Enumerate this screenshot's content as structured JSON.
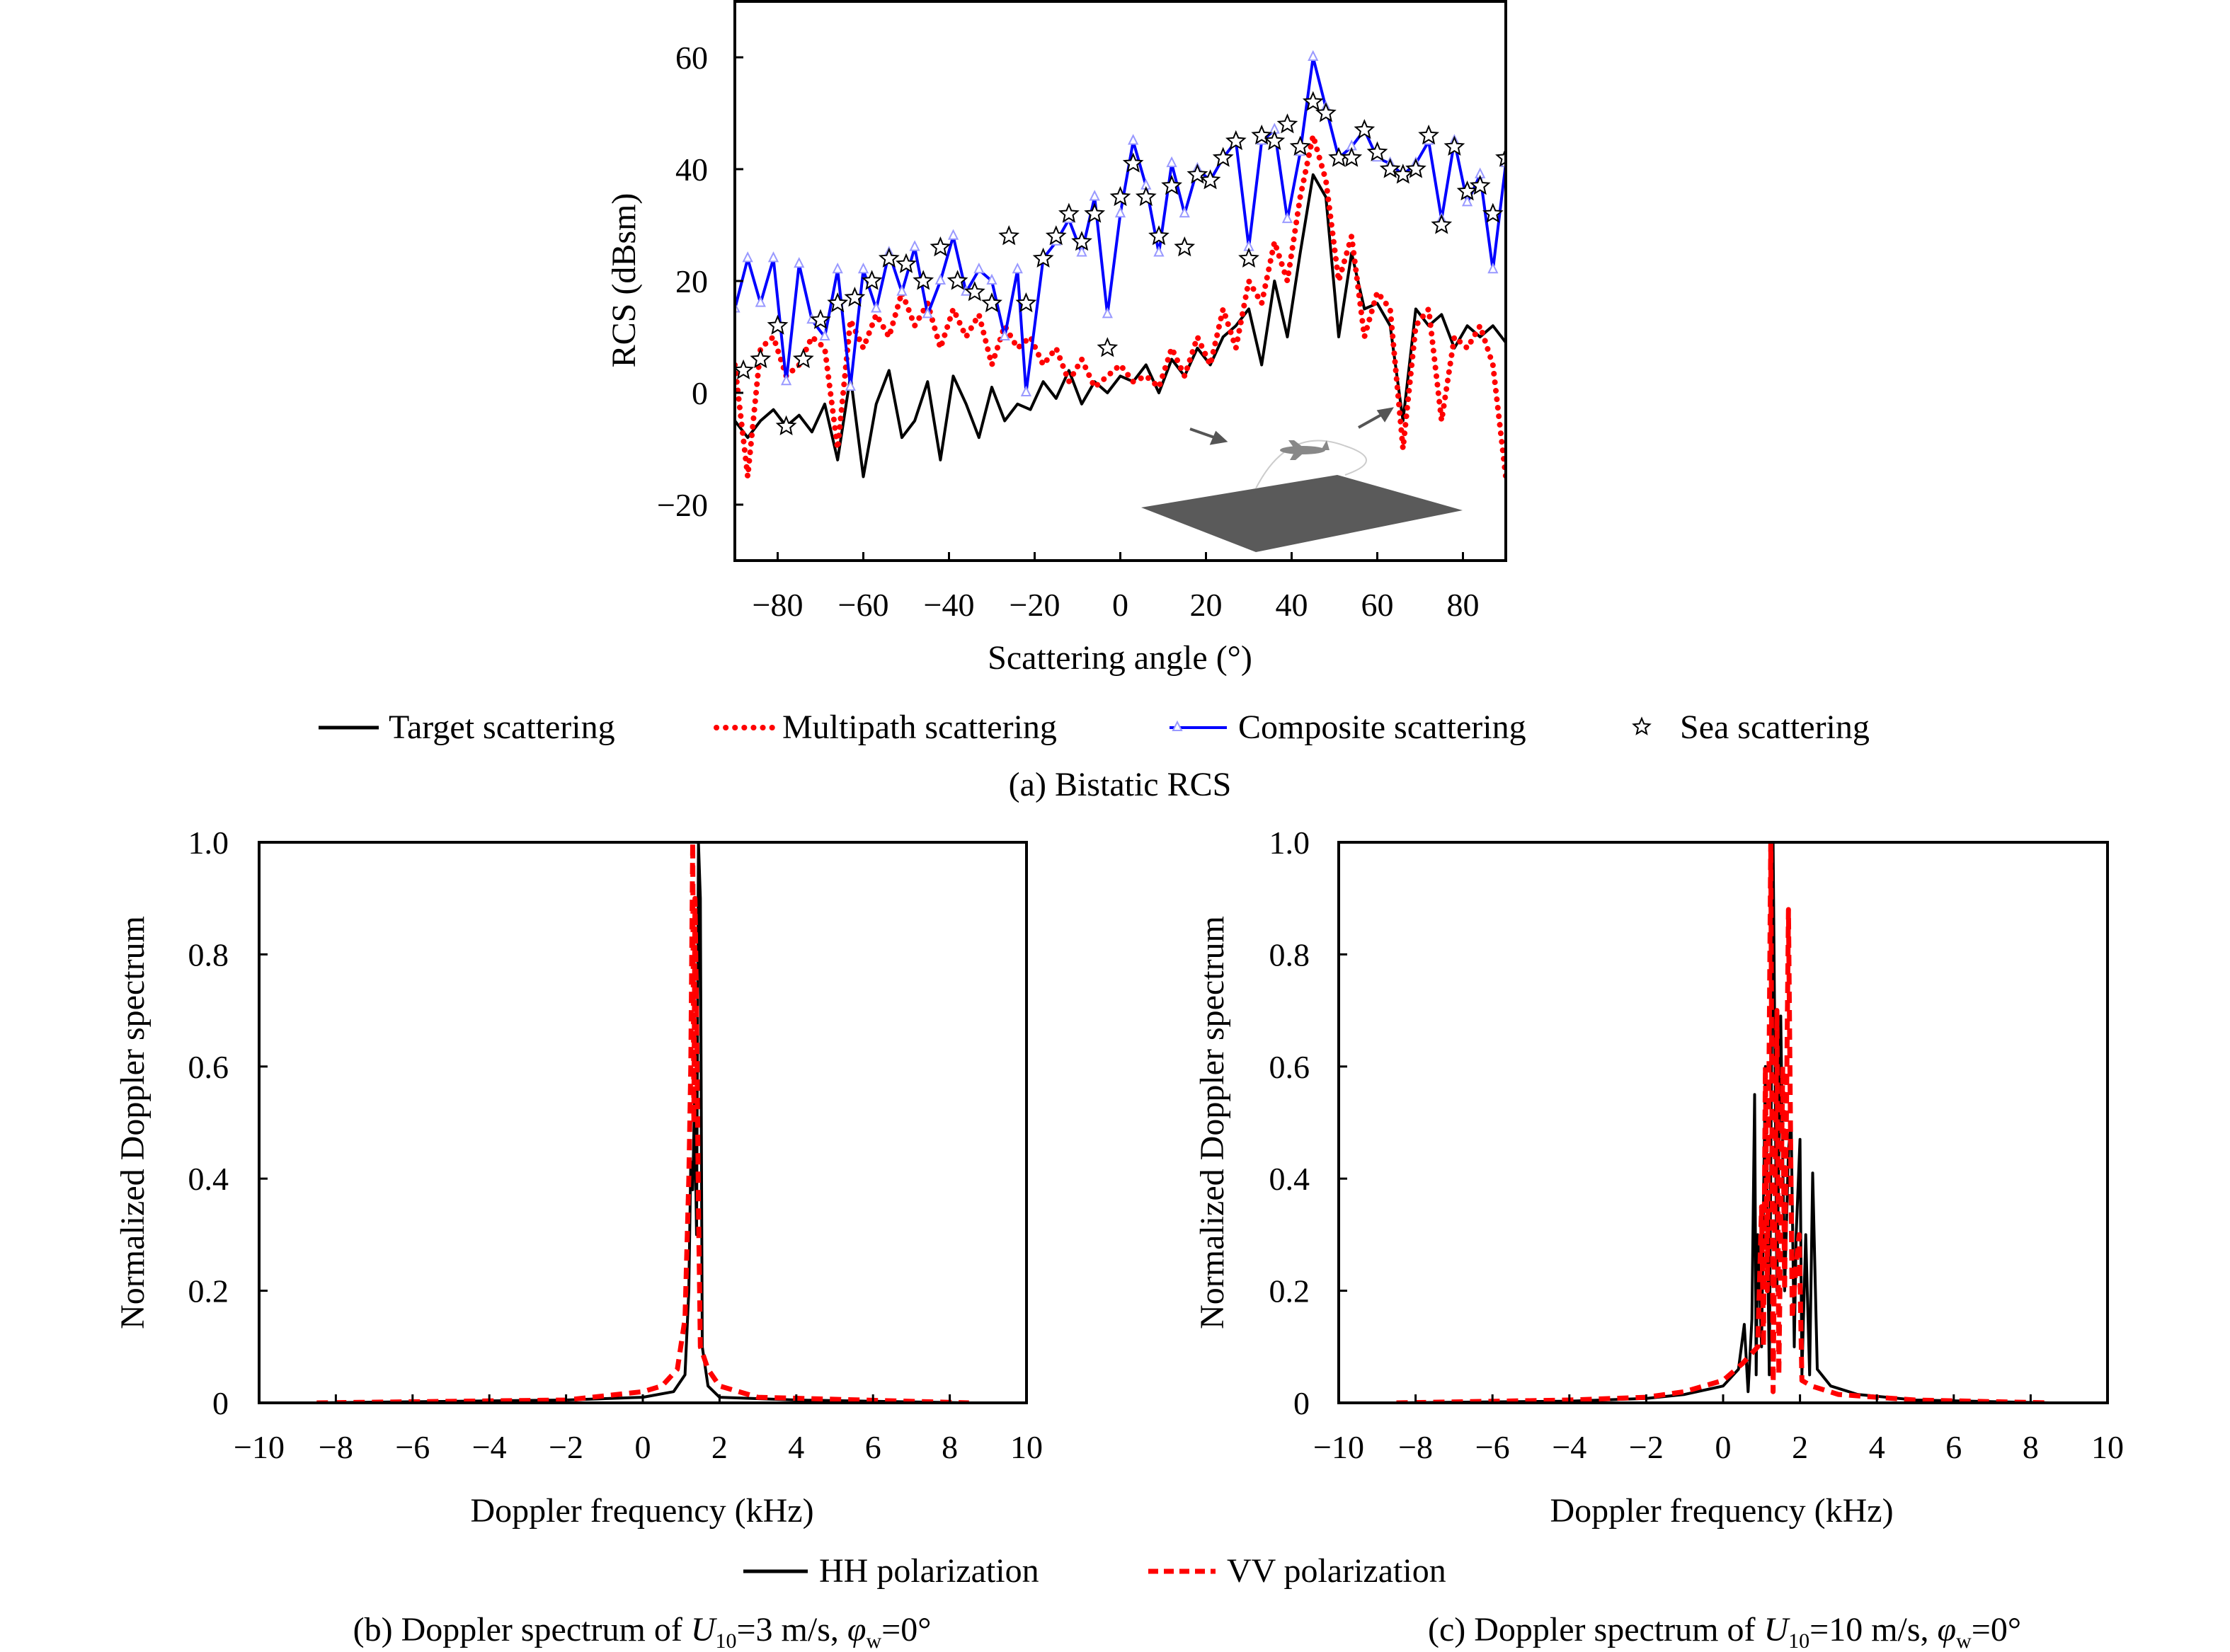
{
  "colors": {
    "target": "#000000",
    "multipath": "#ff0000",
    "composite": "#0000ff",
    "composite_marker": "#9999ff",
    "sea": "#000000",
    "hh": "#000000",
    "vv": "#ff0000",
    "sea_surface": "#555555"
  },
  "chart_data": [
    {
      "id": "a",
      "type": "line",
      "xlabel": "Scattering angle (°)",
      "ylabel": "RCS (dBsm)",
      "xlim": [
        -90,
        90
      ],
      "ylim": [
        -30,
        70
      ],
      "xticks": [
        -80,
        -60,
        -40,
        -20,
        0,
        20,
        40,
        60,
        80
      ],
      "xtick_labels": [
        "−80",
        "−60",
        "−40",
        "−20",
        "0",
        "20",
        "40",
        "60",
        "80"
      ],
      "yticks": [
        -20,
        0,
        20,
        40,
        60
      ],
      "ytick_labels": [
        "−20",
        "0",
        "20",
        "40",
        "60"
      ],
      "grid": false,
      "legend": "bottom",
      "caption": "(a) Bistatic RCS",
      "series": [
        {
          "name": "Target scattering",
          "style": "solid",
          "color": "#000000",
          "x": [
            -90,
            -87,
            -84,
            -81,
            -78,
            -75,
            -72,
            -69,
            -66,
            -63,
            -60,
            -57,
            -54,
            -51,
            -48,
            -45,
            -42,
            -39,
            -36,
            -33,
            -30,
            -27,
            -24,
            -21,
            -18,
            -15,
            -12,
            -9,
            -6,
            -3,
            0,
            3,
            6,
            9,
            12,
            15,
            18,
            21,
            24,
            27,
            30,
            33,
            36,
            39,
            42,
            45,
            48,
            51,
            54,
            57,
            60,
            63,
            66,
            69,
            72,
            75,
            78,
            81,
            84,
            87,
            90
          ],
          "y": [
            -5,
            -8,
            -5,
            -3,
            -6,
            -4,
            -7,
            -2,
            -12,
            3,
            -15,
            -2,
            4,
            -8,
            -5,
            2,
            -12,
            3,
            -2,
            -8,
            1,
            -5,
            -2,
            -3,
            2,
            -1,
            4,
            -2,
            2,
            0,
            3,
            2,
            5,
            0,
            6,
            3,
            8,
            5,
            10,
            12,
            15,
            5,
            20,
            10,
            25,
            39,
            35,
            10,
            25,
            15,
            16,
            12,
            -5,
            15,
            12,
            14,
            8,
            12,
            10,
            12,
            9
          ]
        },
        {
          "name": "Multipath scattering",
          "style": "dotted",
          "color": "#ff0000",
          "x": [
            -90,
            -87,
            -84,
            -81,
            -78,
            -75,
            -72,
            -69,
            -66,
            -63,
            -60,
            -57,
            -54,
            -51,
            -48,
            -45,
            -42,
            -39,
            -36,
            -33,
            -30,
            -27,
            -24,
            -21,
            -18,
            -15,
            -12,
            -9,
            -6,
            -3,
            0,
            3,
            6,
            9,
            12,
            15,
            18,
            21,
            24,
            27,
            30,
            33,
            36,
            39,
            42,
            45,
            48,
            51,
            54,
            57,
            60,
            63,
            66,
            69,
            72,
            75,
            78,
            81,
            84,
            87,
            90
          ],
          "y": [
            5,
            -15,
            8,
            10,
            3,
            5,
            10,
            8,
            -10,
            13,
            8,
            14,
            10,
            18,
            12,
            16,
            8,
            15,
            10,
            14,
            5,
            12,
            8,
            10,
            5,
            8,
            2,
            6,
            1,
            3,
            5,
            2,
            3,
            1,
            8,
            3,
            10,
            5,
            15,
            8,
            20,
            16,
            27,
            20,
            35,
            46,
            38,
            20,
            28,
            10,
            18,
            15,
            -10,
            12,
            15,
            -5,
            10,
            8,
            12,
            5,
            -15
          ]
        },
        {
          "name": "Composite scattering",
          "style": "solid-triangle",
          "color": "#0000ff",
          "x": [
            -90,
            -87,
            -84,
            -81,
            -78,
            -75,
            -72,
            -69,
            -66,
            -63,
            -60,
            -57,
            -54,
            -51,
            -48,
            -45,
            -42,
            -39,
            -36,
            -33,
            -30,
            -27,
            -24,
            -22,
            -18,
            -15,
            -12,
            -9,
            -6,
            -3,
            0,
            3,
            6,
            9,
            12,
            15,
            18,
            21,
            24,
            27,
            30,
            33,
            36,
            39,
            42,
            45,
            48,
            51,
            54,
            57,
            60,
            63,
            66,
            69,
            72,
            75,
            78,
            81,
            84,
            87,
            90
          ],
          "y": [
            15,
            24,
            16,
            24,
            2,
            23,
            13,
            10,
            22,
            1,
            22,
            15,
            25,
            18,
            26,
            14,
            20,
            28,
            18,
            22,
            20,
            10,
            22,
            0,
            24,
            27,
            31,
            25,
            35,
            14,
            32,
            45,
            37,
            25,
            41,
            32,
            40,
            38,
            42,
            45,
            26,
            45,
            47,
            31,
            43,
            60,
            51,
            42,
            44,
            47,
            42,
            41,
            39,
            41,
            45,
            31,
            45,
            34,
            39,
            22,
            41
          ]
        },
        {
          "name": "Sea scattering",
          "style": "star-marker",
          "color": "#000000",
          "x": [
            -88,
            -84,
            -80,
            -78,
            -74,
            -70,
            -66,
            -62,
            -58,
            -54,
            -50,
            -46,
            -42,
            -38,
            -34,
            -30,
            -26,
            -22,
            -18,
            -15,
            -12,
            -9,
            -6,
            -3,
            0,
            3,
            6,
            9,
            12,
            15,
            18,
            21,
            24,
            27,
            30,
            33,
            36,
            39,
            42,
            45,
            48,
            51,
            54,
            57,
            60,
            63,
            66,
            69,
            72,
            75,
            78,
            81,
            84,
            87,
            90
          ],
          "y": [
            4,
            6,
            12,
            -6,
            6,
            13,
            16,
            17,
            20,
            24,
            23,
            20,
            26,
            20,
            18,
            16,
            28,
            16,
            24,
            28,
            32,
            27,
            32,
            8,
            35,
            41,
            35,
            28,
            37,
            26,
            39,
            38,
            42,
            45,
            24,
            46,
            45,
            48,
            44,
            52,
            50,
            42,
            42,
            47,
            43,
            40,
            39,
            40,
            46,
            30,
            44,
            36,
            37,
            32,
            42
          ]
        }
      ]
    },
    {
      "id": "b",
      "type": "line",
      "xlabel": "Doppler frequency (kHz)",
      "ylabel": "Normalized Doppler spectrum",
      "xlim": [
        -10,
        10
      ],
      "ylim": [
        0,
        1
      ],
      "xticks": [
        -10,
        -8,
        -6,
        -4,
        -2,
        0,
        2,
        4,
        6,
        8,
        10
      ],
      "xtick_labels": [
        "−10",
        "−8",
        "−6",
        "−4",
        "−2",
        "0",
        "2",
        "4",
        "6",
        "8",
        "10"
      ],
      "yticks": [
        0,
        0.2,
        0.4,
        0.6,
        0.8,
        1.0
      ],
      "ytick_labels": [
        "0",
        "0.2",
        "0.4",
        "0.6",
        "0.8",
        "1.0"
      ],
      "grid": false,
      "legend": "bottom",
      "caption": {
        "prefix": "(b) Doppler spectrum of ",
        "u": "U",
        "u_sub": "10",
        "mid": "=3 m/s, ",
        "phi": "φ",
        "phi_sub": "w",
        "suffix": "=0°"
      },
      "series": [
        {
          "name": "HH polarization",
          "style": "solid",
          "color": "#000000",
          "points": [
            [
              -8.5,
              0
            ],
            [
              -2,
              0.005
            ],
            [
              0,
              0.01
            ],
            [
              0.8,
              0.02
            ],
            [
              1.1,
              0.05
            ],
            [
              1.2,
              0.2
            ],
            [
              1.25,
              0.43
            ],
            [
              1.3,
              0.38
            ],
            [
              1.35,
              0.55
            ],
            [
              1.4,
              0.3
            ],
            [
              1.45,
              1.0
            ],
            [
              1.5,
              0.9
            ],
            [
              1.55,
              0.1
            ],
            [
              1.7,
              0.03
            ],
            [
              2,
              0.01
            ],
            [
              4,
              0.005
            ],
            [
              8.5,
              0
            ]
          ]
        },
        {
          "name": "VV polarization",
          "style": "dashed",
          "color": "#ff0000",
          "points": [
            [
              -8.5,
              0
            ],
            [
              -2,
              0.005
            ],
            [
              0,
              0.02
            ],
            [
              0.5,
              0.03
            ],
            [
              0.9,
              0.06
            ],
            [
              1.1,
              0.15
            ],
            [
              1.2,
              0.4
            ],
            [
              1.25,
              0.6
            ],
            [
              1.3,
              1.0
            ],
            [
              1.33,
              0.5
            ],
            [
              1.36,
              0.9
            ],
            [
              1.4,
              0.7
            ],
            [
              1.45,
              0.35
            ],
            [
              1.5,
              0.1
            ],
            [
              1.7,
              0.06
            ],
            [
              2,
              0.03
            ],
            [
              3,
              0.01
            ],
            [
              8.5,
              0
            ]
          ]
        }
      ]
    },
    {
      "id": "c",
      "type": "line",
      "xlabel": "Doppler frequency (kHz)",
      "ylabel": "Normalized Doppler spectrum",
      "xlim": [
        -10,
        10
      ],
      "ylim": [
        0,
        1
      ],
      "xticks": [
        -10,
        -8,
        -6,
        -4,
        -2,
        0,
        2,
        4,
        6,
        8,
        10
      ],
      "xtick_labels": [
        "−10",
        "−8",
        "−6",
        "−4",
        "−2",
        "0",
        "2",
        "4",
        "6",
        "8",
        "10"
      ],
      "yticks": [
        0,
        0.2,
        0.4,
        0.6,
        0.8,
        1.0
      ],
      "ytick_labels": [
        "0",
        "0.2",
        "0.4",
        "0.6",
        "0.8",
        "1.0"
      ],
      "grid": false,
      "legend": "bottom",
      "caption": {
        "prefix": "(c) Doppler spectrum of ",
        "u": "U",
        "u_sub": "10",
        "mid": "=10 m/s, ",
        "phi": "φ",
        "phi_sub": "w",
        "suffix": "=0°"
      },
      "series": [
        {
          "name": "HH polarization",
          "style": "solid",
          "color": "#000000",
          "points": [
            [
              -8.5,
              0
            ],
            [
              -4,
              0.003
            ],
            [
              -2,
              0.008
            ],
            [
              -1,
              0.015
            ],
            [
              0,
              0.03
            ],
            [
              0.4,
              0.06
            ],
            [
              0.55,
              0.14
            ],
            [
              0.65,
              0.02
            ],
            [
              0.75,
              0.15
            ],
            [
              0.82,
              0.55
            ],
            [
              0.86,
              0.05
            ],
            [
              0.9,
              0.3
            ],
            [
              1.0,
              0.1
            ],
            [
              1.1,
              0.6
            ],
            [
              1.2,
              0.05
            ],
            [
              1.3,
              1.0
            ],
            [
              1.4,
              0.2
            ],
            [
              1.5,
              0.69
            ],
            [
              1.6,
              0.2
            ],
            [
              1.7,
              0.45
            ],
            [
              1.77,
              0.5
            ],
            [
              1.85,
              0.1
            ],
            [
              1.9,
              0.3
            ],
            [
              2.0,
              0.47
            ],
            [
              2.05,
              0.05
            ],
            [
              2.15,
              0.3
            ],
            [
              2.25,
              0.05
            ],
            [
              2.33,
              0.41
            ],
            [
              2.45,
              0.06
            ],
            [
              2.8,
              0.03
            ],
            [
              3.5,
              0.015
            ],
            [
              5,
              0.005
            ],
            [
              8.5,
              0
            ]
          ]
        },
        {
          "name": "VV polarization",
          "style": "dashed",
          "color": "#ff0000",
          "points": [
            [
              -8.5,
              0
            ],
            [
              -4,
              0.005
            ],
            [
              -2,
              0.01
            ],
            [
              -1,
              0.02
            ],
            [
              0,
              0.04
            ],
            [
              0.5,
              0.07
            ],
            [
              0.9,
              0.1
            ],
            [
              1.0,
              0.35
            ],
            [
              1.05,
              0.1
            ],
            [
              1.1,
              0.6
            ],
            [
              1.15,
              0.2
            ],
            [
              1.24,
              1.0
            ],
            [
              1.3,
              0.02
            ],
            [
              1.4,
              0.7
            ],
            [
              1.45,
              0.05
            ],
            [
              1.55,
              0.6
            ],
            [
              1.6,
              0.2
            ],
            [
              1.7,
              0.88
            ],
            [
              1.8,
              0.15
            ],
            [
              1.9,
              0.25
            ],
            [
              1.98,
              0.3
            ],
            [
              2.05,
              0.04
            ],
            [
              2.3,
              0.03
            ],
            [
              3,
              0.015
            ],
            [
              5,
              0.005
            ],
            [
              8.5,
              0
            ]
          ]
        }
      ]
    }
  ],
  "legend_a": [
    "Target scattering",
    "Multipath scattering",
    "Composite scattering",
    "Sea scattering"
  ],
  "legend_bc": [
    "HH polarization",
    "VV polarization"
  ]
}
